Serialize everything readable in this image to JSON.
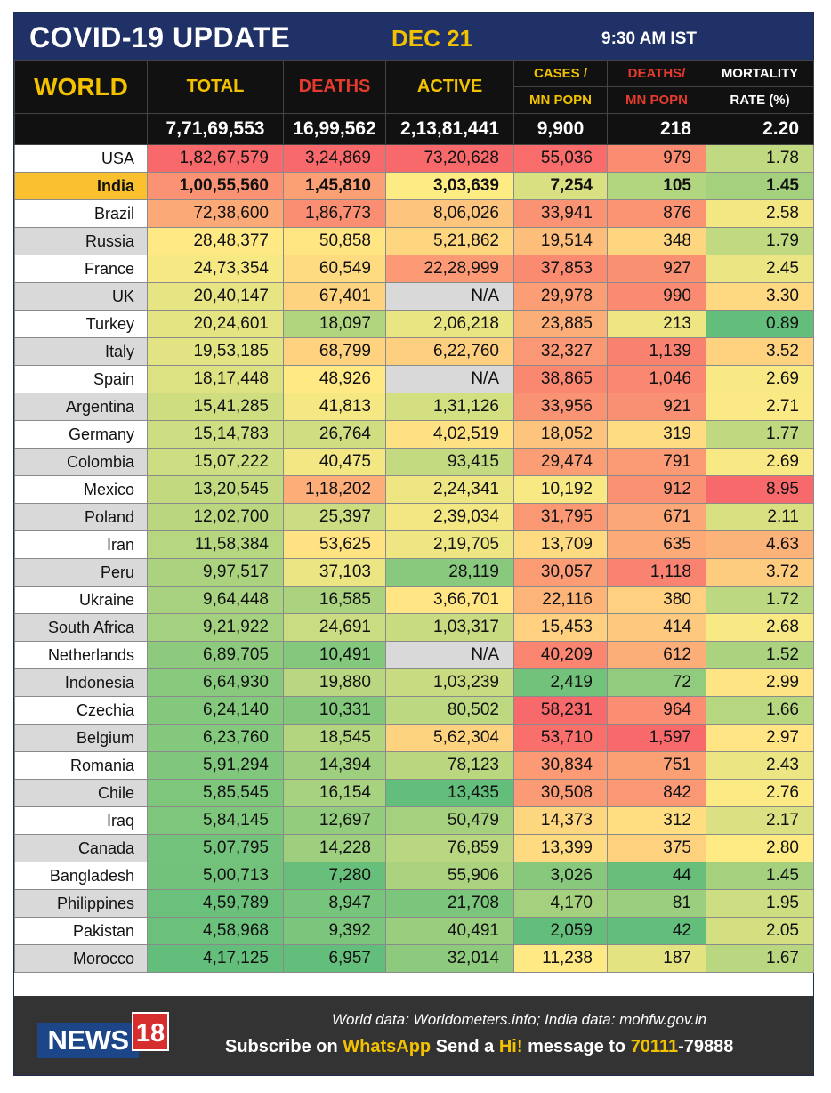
{
  "header": {
    "title": "COVID-19 UPDATE",
    "date": "DEC 21",
    "time": "9:30 AM IST"
  },
  "table": {
    "region_label": "WORLD",
    "columns": {
      "total": "TOTAL",
      "deaths": "DEATHS",
      "active": "ACTIVE",
      "cases_mn_1": "CASES /",
      "cases_mn_2": "MN POPN",
      "deaths_mn_1": "DEATHS/",
      "deaths_mn_2": "MN POPN",
      "mortality_1": "MORTALITY",
      "mortality_2": "RATE (%)"
    },
    "world_totals": {
      "total": "7,71,69,553",
      "deaths": "16,99,562",
      "active": "2,13,81,441",
      "cases_mn": "9,900",
      "deaths_mn": "218",
      "mortality": "2.20"
    },
    "rows": [
      {
        "country": "USA",
        "total": "1,82,67,579",
        "deaths": "3,24,869",
        "active": "73,20,628",
        "cases_mn": "55,036",
        "deaths_mn": "979",
        "mortality": "1.78"
      },
      {
        "country": "India",
        "total": "1,00,55,560",
        "deaths": "1,45,810",
        "active": "3,03,639",
        "cases_mn": "7,254",
        "deaths_mn": "105",
        "mortality": "1.45"
      },
      {
        "country": "Brazil",
        "total": "72,38,600",
        "deaths": "1,86,773",
        "active": "8,06,026",
        "cases_mn": "33,941",
        "deaths_mn": "876",
        "mortality": "2.58"
      },
      {
        "country": "Russia",
        "total": "28,48,377",
        "deaths": "50,858",
        "active": "5,21,862",
        "cases_mn": "19,514",
        "deaths_mn": "348",
        "mortality": "1.79"
      },
      {
        "country": "France",
        "total": "24,73,354",
        "deaths": "60,549",
        "active": "22,28,999",
        "cases_mn": "37,853",
        "deaths_mn": "927",
        "mortality": "2.45"
      },
      {
        "country": "UK",
        "total": "20,40,147",
        "deaths": "67,401",
        "active": "N/A",
        "cases_mn": "29,978",
        "deaths_mn": "990",
        "mortality": "3.30"
      },
      {
        "country": "Turkey",
        "total": "20,24,601",
        "deaths": "18,097",
        "active": "2,06,218",
        "cases_mn": "23,885",
        "deaths_mn": "213",
        "mortality": "0.89"
      },
      {
        "country": "Italy",
        "total": "19,53,185",
        "deaths": "68,799",
        "active": "6,22,760",
        "cases_mn": "32,327",
        "deaths_mn": "1,139",
        "mortality": "3.52"
      },
      {
        "country": "Spain",
        "total": "18,17,448",
        "deaths": "48,926",
        "active": "N/A",
        "cases_mn": "38,865",
        "deaths_mn": "1,046",
        "mortality": "2.69"
      },
      {
        "country": "Argentina",
        "total": "15,41,285",
        "deaths": "41,813",
        "active": "1,31,126",
        "cases_mn": "33,956",
        "deaths_mn": "921",
        "mortality": "2.71"
      },
      {
        "country": "Germany",
        "total": "15,14,783",
        "deaths": "26,764",
        "active": "4,02,519",
        "cases_mn": "18,052",
        "deaths_mn": "319",
        "mortality": "1.77"
      },
      {
        "country": "Colombia",
        "total": "15,07,222",
        "deaths": "40,475",
        "active": "93,415",
        "cases_mn": "29,474",
        "deaths_mn": "791",
        "mortality": "2.69"
      },
      {
        "country": "Mexico",
        "total": "13,20,545",
        "deaths": "1,18,202",
        "active": "2,24,341",
        "cases_mn": "10,192",
        "deaths_mn": "912",
        "mortality": "8.95"
      },
      {
        "country": "Poland",
        "total": "12,02,700",
        "deaths": "25,397",
        "active": "2,39,034",
        "cases_mn": "31,795",
        "deaths_mn": "671",
        "mortality": "2.11"
      },
      {
        "country": "Iran",
        "total": "11,58,384",
        "deaths": "53,625",
        "active": "2,19,705",
        "cases_mn": "13,709",
        "deaths_mn": "635",
        "mortality": "4.63"
      },
      {
        "country": "Peru",
        "total": "9,97,517",
        "deaths": "37,103",
        "active": "28,119",
        "cases_mn": "30,057",
        "deaths_mn": "1,118",
        "mortality": "3.72"
      },
      {
        "country": "Ukraine",
        "total": "9,64,448",
        "deaths": "16,585",
        "active": "3,66,701",
        "cases_mn": "22,116",
        "deaths_mn": "380",
        "mortality": "1.72"
      },
      {
        "country": "South Africa",
        "total": "9,21,922",
        "deaths": "24,691",
        "active": "1,03,317",
        "cases_mn": "15,453",
        "deaths_mn": "414",
        "mortality": "2.68"
      },
      {
        "country": "Netherlands",
        "total": "6,89,705",
        "deaths": "10,491",
        "active": "N/A",
        "cases_mn": "40,209",
        "deaths_mn": "612",
        "mortality": "1.52"
      },
      {
        "country": "Indonesia",
        "total": "6,64,930",
        "deaths": "19,880",
        "active": "1,03,239",
        "cases_mn": "2,419",
        "deaths_mn": "72",
        "mortality": "2.99"
      },
      {
        "country": "Czechia",
        "total": "6,24,140",
        "deaths": "10,331",
        "active": "80,502",
        "cases_mn": "58,231",
        "deaths_mn": "964",
        "mortality": "1.66"
      },
      {
        "country": "Belgium",
        "total": "6,23,760",
        "deaths": "18,545",
        "active": "5,62,304",
        "cases_mn": "53,710",
        "deaths_mn": "1,597",
        "mortality": "2.97"
      },
      {
        "country": "Romania",
        "total": "5,91,294",
        "deaths": "14,394",
        "active": "78,123",
        "cases_mn": "30,834",
        "deaths_mn": "751",
        "mortality": "2.43"
      },
      {
        "country": "Chile",
        "total": "5,85,545",
        "deaths": "16,154",
        "active": "13,435",
        "cases_mn": "30,508",
        "deaths_mn": "842",
        "mortality": "2.76"
      },
      {
        "country": "Iraq",
        "total": "5,84,145",
        "deaths": "12,697",
        "active": "50,479",
        "cases_mn": "14,373",
        "deaths_mn": "312",
        "mortality": "2.17"
      },
      {
        "country": "Canada",
        "total": "5,07,795",
        "deaths": "14,228",
        "active": "76,859",
        "cases_mn": "13,399",
        "deaths_mn": "375",
        "mortality": "2.80"
      },
      {
        "country": "Bangladesh",
        "total": "5,00,713",
        "deaths": "7,280",
        "active": "55,906",
        "cases_mn": "3,026",
        "deaths_mn": "44",
        "mortality": "1.45"
      },
      {
        "country": "Philippines",
        "total": "4,59,789",
        "deaths": "8,947",
        "active": "21,708",
        "cases_mn": "4,170",
        "deaths_mn": "81",
        "mortality": "1.95"
      },
      {
        "country": "Pakistan",
        "total": "4,58,968",
        "deaths": "9,392",
        "active": "40,491",
        "cases_mn": "2,059",
        "deaths_mn": "42",
        "mortality": "2.05"
      },
      {
        "country": "Morocco",
        "total": "4,17,125",
        "deaths": "6,957",
        "active": "32,014",
        "cases_mn": "11,238",
        "deaths_mn": "187",
        "mortality": "1.67"
      }
    ]
  },
  "footer": {
    "logo_news": "NEWS",
    "logo_18": "18",
    "source": "World data: Worldometers.info; India data: mohfw.gov.in",
    "subscribe_1": "Subscribe on ",
    "subscribe_app": "WhatsApp",
    "subscribe_2": " Send a ",
    "subscribe_hi": "Hi!",
    "subscribe_3": " message to ",
    "subscribe_num_a": "70111",
    "subscribe_num_b": "-79888"
  },
  "colors": {
    "header_bg": "#1f3166",
    "accent_yellow": "#f2c200",
    "header_red": "#e53b2e",
    "india_highlight": "#fbc02d",
    "row_alt_gray": "#d9d9d9",
    "na_gray": "#d9d9d9",
    "footer_bg": "#333333"
  }
}
